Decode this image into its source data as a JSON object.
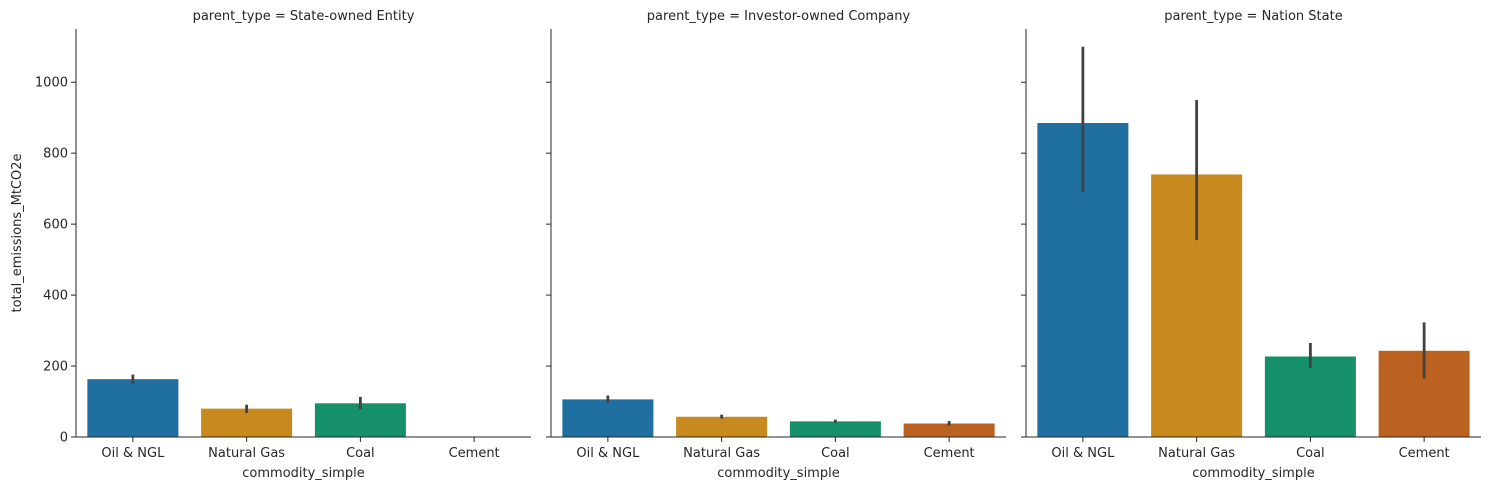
{
  "chart_data": {
    "type": "bar",
    "categories": [
      "Oil & NGL",
      "Natural Gas",
      "Coal",
      "Cement"
    ],
    "xlabel": "commodity_simple",
    "ylabel": "total_emissions_MtCO2e",
    "ylim": [
      0,
      1150
    ],
    "yticks": [
      0,
      200,
      400,
      600,
      800,
      1000
    ],
    "grid": false,
    "colors": [
      "#1f6fa0",
      "#c88a1f",
      "#16906a",
      "#bc6220"
    ],
    "error_bar_color": "#424242",
    "panels": [
      {
        "title": "parent_type = State-owned Entity",
        "values": [
          163,
          80,
          95,
          null
        ],
        "errors": [
          [
            150,
            176
          ],
          [
            68,
            91
          ],
          [
            78,
            113
          ],
          null
        ]
      },
      {
        "title": "parent_type = Investor-owned Company",
        "values": [
          106,
          57,
          44,
          38
        ],
        "errors": [
          [
            96,
            117
          ],
          [
            52,
            63
          ],
          [
            40,
            49
          ],
          [
            32,
            45
          ]
        ]
      },
      {
        "title": "parent_type = Nation State",
        "values": [
          885,
          740,
          227,
          243
        ],
        "errors": [
          [
            690,
            1100
          ],
          [
            555,
            950
          ],
          [
            195,
            265
          ],
          [
            165,
            323
          ]
        ]
      }
    ]
  }
}
